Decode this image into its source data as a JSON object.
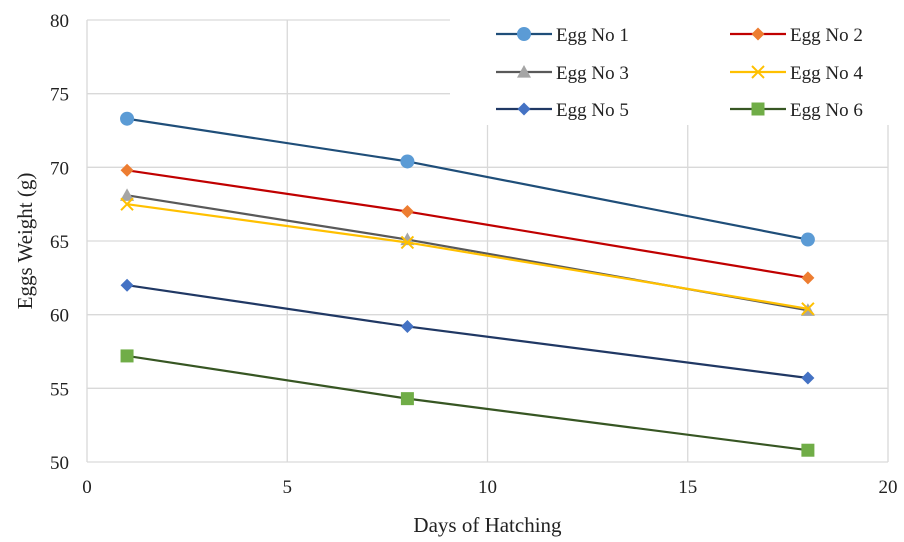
{
  "chart_data": {
    "type": "line",
    "title": "",
    "xlabel": "Days of Hatching",
    "ylabel": "Eggs Weight (g)",
    "x": [
      1,
      8,
      18
    ],
    "xlim": [
      0,
      20
    ],
    "ylim": [
      50,
      80
    ],
    "xticks": [
      0,
      5,
      10,
      15,
      20
    ],
    "yticks": [
      50,
      55,
      60,
      65,
      70,
      75,
      80
    ],
    "grid": true,
    "legend_position": "top-right",
    "series": [
      {
        "name": "Egg No 1",
        "values": [
          73.3,
          70.4,
          65.1
        ],
        "color": "#1f4e79",
        "marker_color": "#5b9bd5",
        "marker": "circle"
      },
      {
        "name": "Egg No 2",
        "values": [
          69.8,
          67.0,
          62.5
        ],
        "color": "#c00000",
        "marker_color": "#ed7d31",
        "marker": "diamond"
      },
      {
        "name": "Egg No 3",
        "values": [
          68.1,
          65.1,
          60.3
        ],
        "color": "#595959",
        "marker_color": "#a5a5a5",
        "marker": "triangle"
      },
      {
        "name": "Egg No 4",
        "values": [
          67.5,
          64.9,
          60.4
        ],
        "color": "#ffc000",
        "marker_color": "#ffc000",
        "marker": "x"
      },
      {
        "name": "Egg No 5",
        "values": [
          62.0,
          59.2,
          55.7
        ],
        "color": "#203864",
        "marker_color": "#4472c4",
        "marker": "diamond"
      },
      {
        "name": "Egg No 6",
        "values": [
          57.2,
          54.3,
          50.8
        ],
        "color": "#375623",
        "marker_color": "#70ad47",
        "marker": "square"
      }
    ]
  }
}
